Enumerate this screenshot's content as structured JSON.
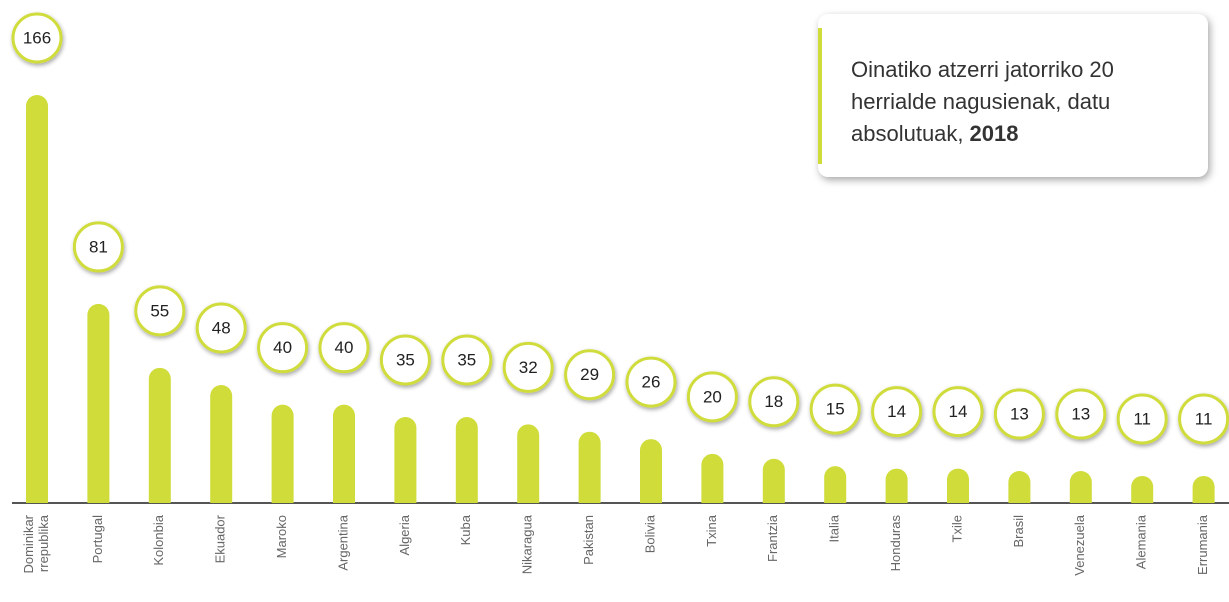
{
  "chart_data": {
    "type": "bar",
    "title": [
      "Oinatiko atzerri jatorriko 20 herrialde nagusienak, datu absolutuak,",
      "2018"
    ],
    "categories": [
      [
        "Dominikar",
        "rrepublika"
      ],
      "Portugal",
      "Kolonbia",
      "Ekuador",
      "Maroko",
      "Argentina",
      "Algeria",
      "Kuba",
      "Nikaragua",
      "Pakistan",
      "Bolivia",
      "Txina",
      "Frantzia",
      "Italia",
      "Honduras",
      "Txile",
      "Brasil",
      "Venezuela",
      "Alemania",
      "Errumania"
    ],
    "values": [
      166,
      81,
      55,
      48,
      40,
      40,
      35,
      35,
      32,
      29,
      26,
      20,
      18,
      15,
      14,
      14,
      13,
      13,
      11,
      11
    ],
    "color": "#cfdc3a"
  }
}
